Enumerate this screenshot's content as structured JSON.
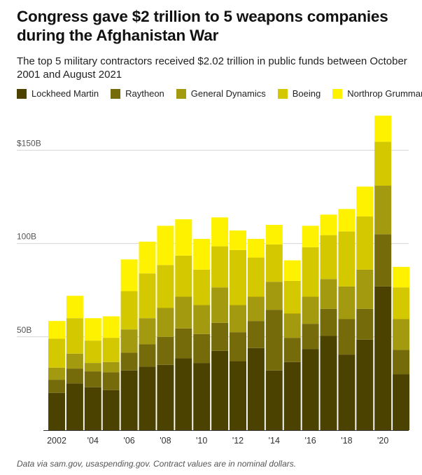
{
  "header": {
    "title": "Congress gave $2 trillion to 5 weapons companies during the Afghanistan War",
    "subtitle": "The top 5 military contractors received $2.02 trillion in public funds between October 2001 and August 2021"
  },
  "footer": {
    "note": "Data via sam.gov, usaspending.gov. Contract values are in nominal dollars."
  },
  "chart_data": {
    "type": "bar",
    "stacked": true,
    "title": "Congress gave $2 trillion to 5 weapons companies during the Afghanistan War",
    "subtitle": "The top 5 military contractors received $2.02 trillion in public funds between October 2001 and August 2021",
    "categories": [
      "2002",
      "2003",
      "2004",
      "2005",
      "2006",
      "2007",
      "2008",
      "2009",
      "2010",
      "2011",
      "2012",
      "2013",
      "2014",
      "2015",
      "2016",
      "2017",
      "2018",
      "2019",
      "2020",
      "2021"
    ],
    "x_tick_labels": [
      "2002",
      "",
      "'04",
      "",
      "'06",
      "",
      "'08",
      "",
      "'10",
      "",
      "'12",
      "",
      "'14",
      "",
      "'16",
      "",
      "'18",
      "",
      "'20",
      ""
    ],
    "y_tick_values": [
      50,
      100,
      150
    ],
    "y_tick_labels": [
      "50B",
      "100B",
      "$150B"
    ],
    "ylim": [
      0,
      170
    ],
    "grid": true,
    "legend_position": "top-left",
    "series": [
      {
        "name": "Lockheed Martin",
        "color": "#4b4200",
        "values": [
          20,
          25,
          23,
          21.5,
          32,
          34,
          35,
          38.5,
          36,
          42.5,
          37,
          44,
          32,
          36.5,
          43.5,
          50.5,
          40.5,
          48.5,
          77,
          30
        ]
      },
      {
        "name": "Raytheon",
        "color": "#766b0b",
        "values": [
          7,
          8,
          8.5,
          9.5,
          9.5,
          12,
          15,
          16,
          15.5,
          15,
          15.5,
          14.5,
          32.5,
          13,
          13.5,
          14.5,
          19,
          16.5,
          28,
          13
        ]
      },
      {
        "name": "General Dynamics",
        "color": "#a39a10",
        "values": [
          6.5,
          8,
          4.5,
          5.5,
          12.5,
          14,
          15.5,
          17,
          15.5,
          19,
          14.5,
          13,
          15,
          13,
          14.5,
          16,
          17.5,
          21,
          26,
          16.5
        ]
      },
      {
        "name": "Boeing",
        "color": "#d4c800",
        "values": [
          15.5,
          19,
          12,
          13,
          20.5,
          24,
          23,
          22,
          19,
          22,
          29.5,
          21,
          20,
          17.5,
          26.5,
          23.5,
          29.5,
          28.5,
          23.5,
          17
        ]
      },
      {
        "name": "Northrop Grumman",
        "color": "#fff200",
        "values": [
          9.5,
          12,
          12,
          11.5,
          17,
          17,
          21,
          19.5,
          16.5,
          15.5,
          10.5,
          10,
          10.5,
          11,
          11.5,
          11,
          12,
          16,
          14,
          11
        ]
      }
    ]
  }
}
